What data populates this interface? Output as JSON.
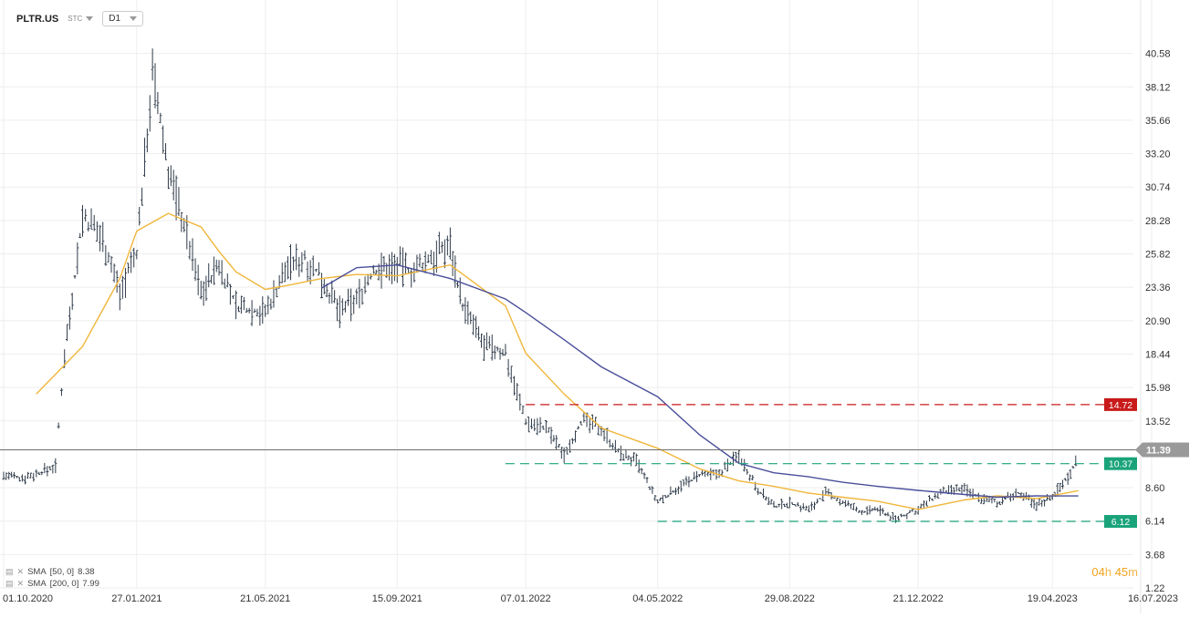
{
  "header": {
    "symbol": "PLTR.US",
    "instrument_type": "STC",
    "timeframe": "D1"
  },
  "indicators": [
    {
      "icon": "list-icon",
      "label": "SMA",
      "params": "[50, 0]",
      "value": "8.38",
      "color": "#f0b63a"
    },
    {
      "icon": "list-icon",
      "label": "SMA",
      "params": "[200, 0]",
      "value": "7.99",
      "color": "#4a4f9a"
    }
  ],
  "timer": {
    "hours": "04",
    "h": "h",
    "minutes": "45",
    "m": "m"
  },
  "chart_data": {
    "type": "line",
    "style": "ohlc-bars",
    "y_scale": "linear",
    "ylim": [
      1.22,
      42.5
    ],
    "y_ticks": [
      "40.58",
      "38.12",
      "35.66",
      "33.20",
      "30.74",
      "28.28",
      "25.82",
      "23.36",
      "20.90",
      "18.44",
      "15.98",
      "13.52",
      "11.39",
      "8.60",
      "6.14",
      "3.68",
      "1.22"
    ],
    "x_ticks": [
      "01.10.2020",
      "27.01.2021",
      "21.05.2021",
      "15.09.2021",
      "07.01.2022",
      "04.05.2022",
      "29.08.2022",
      "21.12.2022",
      "19.04.2023",
      "16.07.2023"
    ],
    "x": [
      "01.10.2020",
      "15.10.2020",
      "30.10.2020",
      "16.11.2020",
      "24.11.2020",
      "10.12.2020",
      "28.12.2020",
      "12.01.2021",
      "27.01.2021",
      "10.02.2021",
      "24.02.2021",
      "10.03.2021",
      "25.03.2021",
      "10.04.2021",
      "25.04.2021",
      "21.05.2021",
      "10.06.2021",
      "25.06.2021",
      "10.07.2021",
      "26.07.2021",
      "10.08.2021",
      "25.08.2021",
      "15.09.2021",
      "30.09.2021",
      "15.10.2021",
      "01.11.2021",
      "12.11.2021",
      "01.12.2021",
      "20.12.2021",
      "07.01.2022",
      "25.01.2022",
      "10.02.2022",
      "25.02.2022",
      "15.03.2022",
      "30.03.2022",
      "15.04.2022",
      "04.05.2022",
      "20.05.2022",
      "10.06.2022",
      "25.06.2022",
      "15.07.2022",
      "01.08.2022",
      "15.08.2022",
      "29.08.2022",
      "15.09.2022",
      "30.09.2022",
      "15.10.2022",
      "01.11.2022",
      "15.11.2022",
      "01.12.2022",
      "21.12.2022",
      "10.01.2023",
      "31.01.2023",
      "15.02.2023",
      "01.03.2023",
      "20.03.2023",
      "05.04.2023",
      "19.04.2023",
      "05.05.2023",
      "12.05.2023"
    ],
    "close": [
      9.5,
      9.3,
      9.6,
      10.2,
      18.5,
      28.5,
      27,
      23,
      26,
      39,
      32,
      28,
      23,
      25,
      22,
      21.5,
      25,
      25.5,
      24,
      21.5,
      22.5,
      24.5,
      25,
      24.5,
      25.5,
      26.5,
      22,
      19,
      18.5,
      13.5,
      13,
      11,
      13.5,
      13,
      11.2,
      10.5,
      7.5,
      8.5,
      9.5,
      9.5,
      11,
      8.5,
      7.2,
      7.5,
      7.0,
      8.2,
      7.5,
      6.8,
      7.0,
      6.3,
      7.0,
      8.2,
      8.5,
      7.8,
      7.5,
      8.2,
      7.3,
      8.0,
      9.6,
      11.4
    ],
    "sma": [
      {
        "name": "SMA [50, 0]",
        "color": "#f0b63a",
        "x": [
          "30.10.2020",
          "10.12.2020",
          "12.01.2021",
          "27.01.2021",
          "24.02.2021",
          "25.03.2021",
          "10.04.2021",
          "25.04.2021",
          "21.05.2021",
          "10.06.2021",
          "10.07.2021",
          "10.08.2021",
          "15.09.2021",
          "01.11.2021",
          "20.12.2021",
          "07.01.2022",
          "10.02.2022",
          "15.03.2022",
          "04.05.2022",
          "10.06.2022",
          "15.07.2022",
          "15.08.2022",
          "15.09.2022",
          "15.10.2022",
          "15.11.2022",
          "21.12.2022",
          "31.01.2023",
          "01.03.2023",
          "05.04.2023",
          "12.05.2023"
        ],
        "y": [
          15.5,
          19,
          24,
          27.5,
          28.8,
          27.8,
          26,
          24.5,
          23.2,
          23.5,
          24,
          24.3,
          24.2,
          25,
          22,
          18.5,
          15.5,
          13,
          11.5,
          10,
          9.1,
          8.7,
          8.2,
          7.9,
          7.6,
          7.0,
          7.7,
          8.0,
          7.8,
          8.38
        ]
      },
      {
        "name": "SMA [200, 0]",
        "color": "#4a4f9a",
        "x": [
          "10.07.2021",
          "10.08.2021",
          "15.09.2021",
          "01.11.2021",
          "20.12.2021",
          "07.01.2022",
          "10.02.2022",
          "15.03.2022",
          "04.05.2022",
          "10.06.2022",
          "15.07.2022",
          "15.08.2022",
          "15.09.2022",
          "15.10.2022",
          "15.11.2022",
          "21.12.2022",
          "31.01.2023",
          "01.03.2023",
          "05.04.2023",
          "12.05.2023"
        ],
        "y": [
          23.3,
          24.8,
          25,
          24,
          22.5,
          21.5,
          19.5,
          17.5,
          15.3,
          12.5,
          10.4,
          9.7,
          9.4,
          9.0,
          8.7,
          8.4,
          8.1,
          7.9,
          8.0,
          7.99
        ]
      }
    ],
    "horizontal_levels": [
      {
        "value": "14.72",
        "color": "#c81a1a",
        "style": "dashed",
        "from": "07.01.2022"
      },
      {
        "value": "10.37",
        "color": "#1aa37a",
        "style": "dashed",
        "from": "20.12.2021"
      },
      {
        "value": "6.12",
        "color": "#1aa37a",
        "style": "dashed",
        "from": "04.05.2022"
      },
      {
        "value": "11.39",
        "color": "#888888",
        "style": "solid",
        "from": "01.10.2020",
        "current_price": true
      }
    ],
    "grid": true,
    "legend": "bottom-left"
  }
}
